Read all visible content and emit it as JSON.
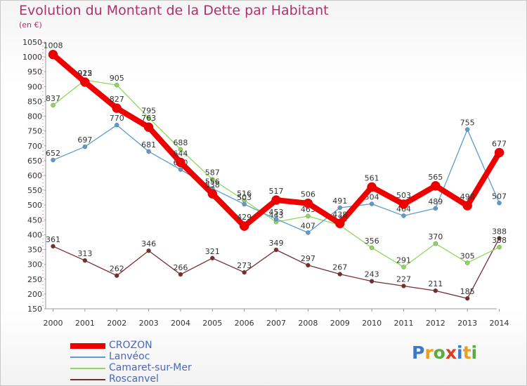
{
  "header": {
    "title": "Evolution du Montant de la Dette par Habitant",
    "subtitle": "(en €)"
  },
  "logo": {
    "text": "Proxiti"
  },
  "chart_data": {
    "type": "line",
    "title": "Evolution du Montant de la Dette par Habitant",
    "subtitle": "(en €)",
    "x": [
      "2000",
      "2001",
      "2002",
      "2003",
      "2004",
      "2005",
      "2006",
      "2007",
      "2008",
      "2009",
      "2010",
      "2011",
      "2012",
      "2013",
      "2014"
    ],
    "y_ticks": [
      "150",
      "200",
      "250",
      "300",
      "350",
      "400",
      "450",
      "500",
      "550",
      "600",
      "650",
      "700",
      "750",
      "800",
      "850",
      "900",
      "950",
      "1000",
      "1050"
    ],
    "ylim": [
      150,
      1050
    ],
    "grid": false,
    "legend_position": "bottom-left",
    "series": [
      {
        "name": "CROZON",
        "color": "#ee0000",
        "values": [
          1008,
          915,
          827,
          763,
          644,
          538,
          429,
          517,
          506,
          438,
          561,
          503,
          565,
          498,
          677
        ]
      },
      {
        "name": "Lanvéoc",
        "color": "#5b9bd0",
        "values": [
          652,
          697,
          770,
          681,
          620,
          556,
          503,
          453,
          407,
          491,
          504,
          464,
          489,
          755,
          507
        ]
      },
      {
        "name": "Camaret-sur-Mer",
        "color": "#8ed85a",
        "values": [
          837,
          922,
          905,
          795,
          688,
          587,
          516,
          443,
          463,
          432,
          356,
          291,
          370,
          305,
          358
        ]
      },
      {
        "name": "Roscanvel",
        "color": "#7a2c2c",
        "values": [
          361,
          313,
          262,
          346,
          266,
          321,
          273,
          349,
          297,
          267,
          243,
          227,
          211,
          185,
          388
        ]
      }
    ]
  }
}
